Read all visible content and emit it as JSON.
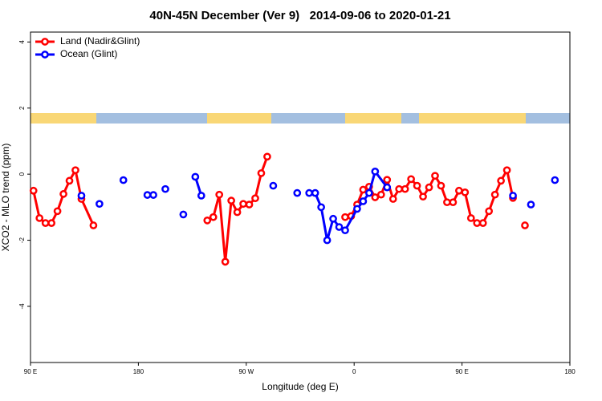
{
  "chart_data": {
    "type": "line",
    "title": "40N-45N December (Ver 9)   2014-09-06 to 2020-01-21",
    "x_label": "Longitude (deg E)",
    "y_label": "XCO2 - MLO trend (ppm)",
    "xlim": [
      90,
      540
    ],
    "ylim": [
      -5.7,
      4.3
    ],
    "xticks": [
      {
        "value": 90,
        "label": "90 E"
      },
      180,
      {
        "value": 270,
        "label": "90 W"
      },
      {
        "value": 360,
        "label": "0"
      },
      {
        "value": 450,
        "label": "90 E"
      },
      {
        "value": 540,
        "label": "180"
      }
    ],
    "yticks": [
      -4,
      -2,
      0,
      2,
      4
    ],
    "legend": "top-left",
    "series": [
      {
        "name": "Land (Nadir&Glint)",
        "color": "#ff0000",
        "x": [
          92.5,
          97.5,
          102.5,
          107.5,
          112.5,
          117.5,
          122.5,
          127.5,
          132.5,
          142.5,
          null,
          237.5,
          242.5,
          247.5,
          252.5,
          257.5,
          262.5,
          267.5,
          272.5,
          277.5,
          282.5,
          287.5,
          null,
          352.5,
          357.5,
          362.5,
          367.5,
          372.5,
          377.5,
          382.5,
          387.5,
          392.5,
          397.5,
          402.5,
          407.5,
          412.5,
          417.5,
          422.5,
          427.5,
          432.5,
          437.5,
          442.5,
          447.5,
          452.5,
          457.5,
          462.5,
          467.5,
          472.5,
          477.5,
          482.5,
          487.5,
          492.5,
          null,
          502.5
        ],
        "values": [
          -0.5,
          -1.33,
          -1.48,
          -1.48,
          -1.12,
          -0.6,
          -0.2,
          0.12,
          -0.75,
          -1.55,
          null,
          -1.4,
          -1.3,
          -0.62,
          -2.65,
          -0.8,
          -1.15,
          -0.9,
          -0.92,
          -0.73,
          0.03,
          0.53,
          null,
          -1.3,
          -1.27,
          -0.92,
          -0.47,
          -0.38,
          -0.7,
          -0.62,
          -0.17,
          -0.75,
          -0.45,
          -0.45,
          -0.15,
          -0.35,
          -0.68,
          -0.4,
          -0.05,
          -0.35,
          -0.85,
          -0.85,
          -0.5,
          -0.55,
          -1.33,
          -1.48,
          -1.48,
          -1.12,
          -0.62,
          -0.2,
          0.12,
          -0.72,
          null,
          -1.55
        ]
      },
      {
        "name": "Ocean (Glint)",
        "color": "#0000ff",
        "x": [
          132.5,
          null,
          147.5,
          null,
          167.5,
          null,
          187.5,
          null,
          192.5,
          null,
          202.5,
          null,
          217.5,
          null,
          227.5,
          232.5,
          null,
          292.5,
          null,
          312.5,
          null,
          322.5,
          327.5,
          332.5,
          337.5,
          342.5,
          347.5,
          352.5,
          362.5,
          367.5,
          372.5,
          377.5,
          387.5,
          null,
          492.5,
          null,
          507.5,
          null,
          527.5
        ],
        "values": [
          -0.65,
          null,
          -0.9,
          null,
          -0.18,
          null,
          -0.63,
          null,
          -0.63,
          null,
          -0.45,
          null,
          -1.22,
          null,
          -0.08,
          -0.65,
          null,
          -0.35,
          null,
          -0.57,
          null,
          -0.57,
          -0.57,
          -1.0,
          -2.0,
          -1.35,
          -1.6,
          -1.7,
          -1.05,
          -0.82,
          -0.57,
          0.08,
          -0.4,
          null,
          -0.65,
          null,
          -0.92,
          null,
          -0.18
        ]
      }
    ]
  }
}
